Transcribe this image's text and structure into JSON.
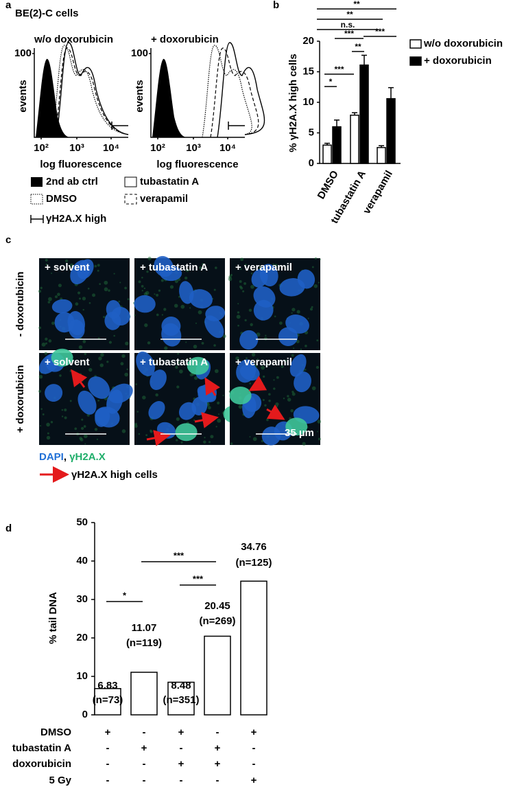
{
  "panel_a": {
    "letter": "a",
    "title": "BE(2)-C cells",
    "plots": [
      {
        "title": "w/o doxorubicin",
        "ytick": "100",
        "ylabel": "events",
        "xticks": [
          "10²",
          "10³",
          "10⁴"
        ],
        "xlabel": "log fluorescence"
      },
      {
        "title": "+ doxorubicin",
        "ytick": "100",
        "ylabel": "events",
        "xticks": [
          "10²",
          "10³",
          "10⁴"
        ],
        "xlabel": "log fluorescence"
      }
    ],
    "legend": [
      "2nd ab ctrl",
      "tubastatin A",
      "DMSO",
      "verapamil",
      "γH2A.X high"
    ]
  },
  "chart_data": [
    {
      "type": "bar",
      "letter": "b",
      "ylabel": "% γH2A.X high cells",
      "categories": [
        "DMSO",
        "tubastatin A",
        "verapamil"
      ],
      "series": [
        {
          "name": "w/o doxorubicin",
          "color": "#ffffff",
          "values": [
            3.0,
            7.9,
            2.6
          ],
          "errors": [
            0.3,
            0.4,
            0.3
          ]
        },
        {
          "name": "+ doxorubicin",
          "color": "#000000",
          "values": [
            6.0,
            16.1,
            10.6
          ],
          "errors": [
            1.1,
            1.6,
            1.8
          ]
        }
      ],
      "ylim": [
        0,
        20
      ],
      "yticks": [
        0,
        5,
        10,
        15,
        20
      ],
      "annotations": [
        "*",
        "***",
        "**",
        "***",
        "***",
        "n.s.",
        "**",
        "**"
      ]
    },
    {
      "type": "bar",
      "letter": "d",
      "ylabel": "% tail DNA",
      "values": [
        6.83,
        11.07,
        8.48,
        20.45,
        34.76
      ],
      "n_labels": [
        "(n=73)",
        "(n=119)",
        "(n=351)",
        "(n=269)",
        "(n=125)"
      ],
      "color": "#ffffff",
      "ylim": [
        0,
        50
      ],
      "yticks": [
        0,
        10,
        20,
        30,
        40,
        50
      ],
      "annotations": [
        "*",
        "***",
        "***"
      ],
      "conditions": [
        {
          "name": "DMSO",
          "marks": [
            "+",
            "-",
            "+",
            "-",
            "+"
          ]
        },
        {
          "name": "tubastatin A",
          "marks": [
            "-",
            "+",
            "-",
            "+",
            "-"
          ]
        },
        {
          "name": "doxorubicin",
          "marks": [
            "-",
            "-",
            "+",
            "+",
            "-"
          ]
        },
        {
          "name": "5 Gy",
          "marks": [
            "-",
            "-",
            "-",
            "-",
            "+"
          ]
        }
      ]
    }
  ],
  "panel_c": {
    "letter": "c",
    "rows": [
      "- doxorubicin",
      "+ doxorubicin"
    ],
    "panels": [
      [
        "+ solvent",
        "+ tubastatin A",
        "+ verapamil"
      ],
      [
        "+ solvent",
        "+ tubastatin A",
        "+ verapamil"
      ]
    ],
    "scale": "35 µm",
    "legend": {
      "dapi": "DAPI",
      "sep": ", ",
      "gamma": "γH2A.X",
      "arrow": "γH2A.X high cells"
    }
  }
}
